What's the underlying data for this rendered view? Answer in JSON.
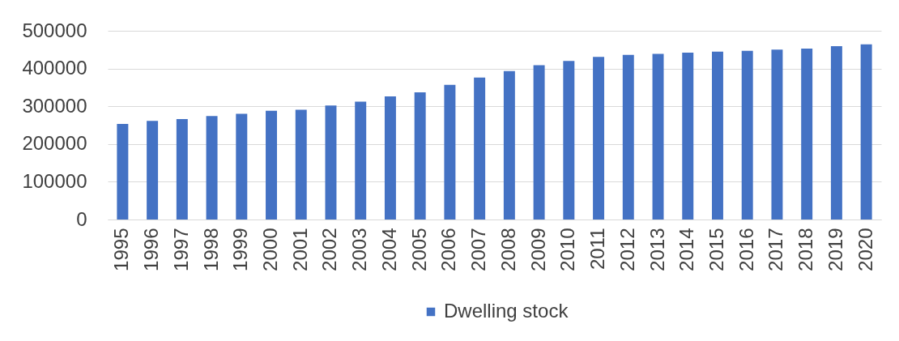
{
  "chart_data": {
    "type": "bar",
    "categories": [
      "1995",
      "1996",
      "1997",
      "1998",
      "1999",
      "2000",
      "2001",
      "2002",
      "2003",
      "2004",
      "2005",
      "2006",
      "2007",
      "2008",
      "2009",
      "2010",
      "2011",
      "2012",
      "2013",
      "2014",
      "2015",
      "2016",
      "2017",
      "2018",
      "2019",
      "2020"
    ],
    "series": [
      {
        "name": "Dwelling stock",
        "color": "#4472c4",
        "values": [
          253000,
          261000,
          266000,
          274000,
          280000,
          288000,
          291000,
          302000,
          312000,
          326000,
          337000,
          357000,
          376000,
          393000,
          409000,
          420000,
          431000,
          436000,
          439000,
          442000,
          445000,
          447000,
          450000,
          453000,
          459000,
          464000
        ]
      }
    ],
    "ylim": [
      0,
      500000
    ],
    "yticks": [
      0,
      100000,
      200000,
      300000,
      400000,
      500000
    ],
    "grid": "y",
    "legend": "bottom"
  }
}
